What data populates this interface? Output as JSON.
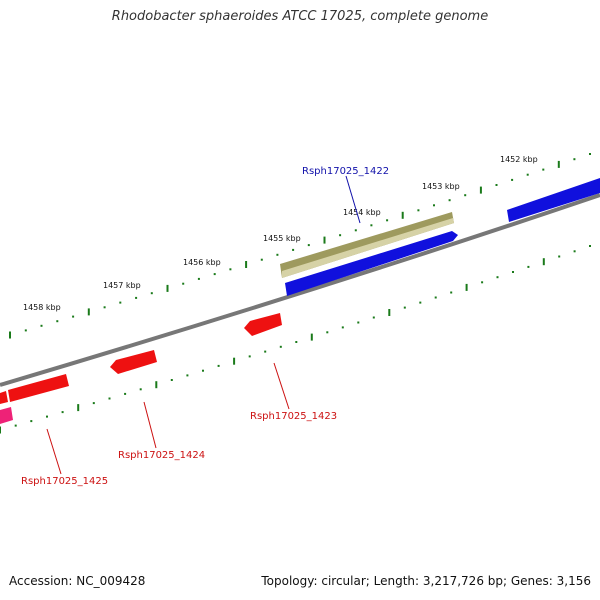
{
  "title": "Rhodobacter sphaeroides ATCC 17025, complete genome",
  "footer": {
    "accession": "Accession: NC_009428",
    "topology": "Topology: circular; Length: 3,217,726 bp; Genes: 3,156"
  },
  "colors": {
    "backbone": "#777777",
    "tick": "#1a7a1a",
    "forward_gene": "#1010dd",
    "reverse_gene": "#ee1111",
    "special_gene": "#9e9a5e",
    "pink_gene": "#ee2277",
    "forward_label": "#1111aa",
    "reverse_label": "#cc1111"
  },
  "scale_labels": [
    "1452 kbp",
    "1453 kbp",
    "1454 kbp",
    "1455 kbp",
    "1456 kbp",
    "1457 kbp",
    "1458 kbp"
  ],
  "gene_labels": [
    {
      "name": "Rsph17025_1422",
      "strand": "forward"
    },
    {
      "name": "Rsph17025_1423",
      "strand": "reverse"
    },
    {
      "name": "Rsph17025_1424",
      "strand": "reverse"
    },
    {
      "name": "Rsph17025_1425",
      "strand": "reverse"
    }
  ]
}
